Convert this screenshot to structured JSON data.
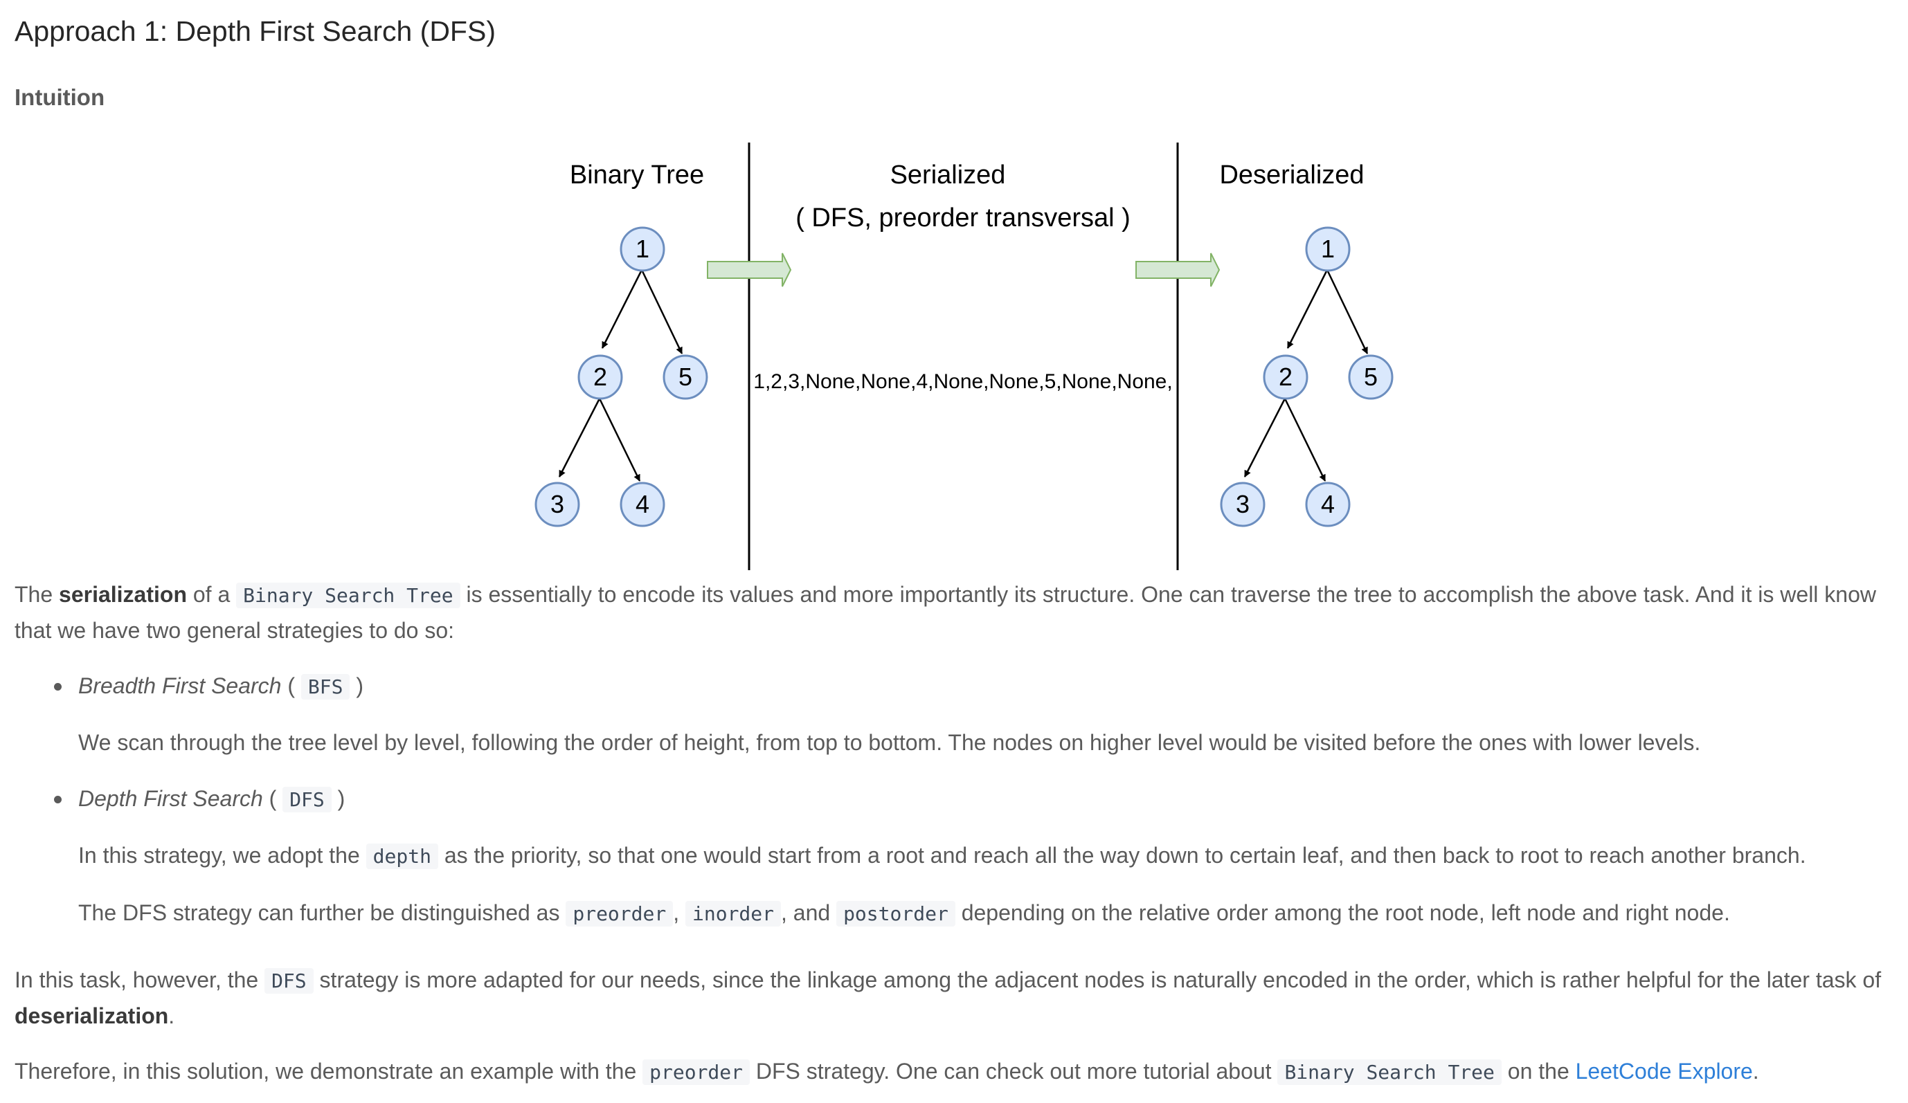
{
  "heading": "Approach 1: Depth First Search (DFS)",
  "subheading": "Intuition",
  "diagram": {
    "label_tree": "Binary Tree",
    "label_serialized": "Serialized",
    "label_serialized_sub": "( DFS, preorder transversal )",
    "label_deserialized": "Deserialized",
    "serialized_string": "1,2,3,None,None,4,None,None,5,None,None,",
    "node_values": [
      "1",
      "2",
      "5",
      "3",
      "4"
    ],
    "colors": {
      "node_fill": "#dae8fc",
      "node_stroke": "#6c8ebf",
      "arrow_fill": "#d5e8d4",
      "arrow_stroke": "#82b366"
    }
  },
  "p1": {
    "t1": "The ",
    "b1": "serialization",
    "t2": " of a ",
    "c1": "Binary Search Tree",
    "t3": " is essentially to encode its values and more importantly its structure. One can traverse the tree to accomplish the above task. And it is well know that we have two general strategies to do so:"
  },
  "bfs": {
    "title": "Breadth First Search",
    "open": " ( ",
    "code": "BFS",
    "close": " )",
    "desc": "We scan through the tree level by level, following the order of height, from top to bottom. The nodes on higher level would be visited before the ones with lower levels."
  },
  "dfs": {
    "title": "Depth First Search",
    "open": " ( ",
    "code": "DFS",
    "close": " )",
    "d1a": "In this strategy, we adopt the ",
    "d1code": "depth",
    "d1b": " as the priority, so that one would start from a root and reach all the way down to certain leaf, and then back to root to reach another branch.",
    "d2a": "The DFS strategy can further be distinguished as ",
    "d2c1": "preorder",
    "d2b": ", ",
    "d2c2": "inorder",
    "d2c": ", and ",
    "d2c3": "postorder",
    "d2d": " depending on the relative order among the root node, left node and right node."
  },
  "p2": {
    "t1": "In this task, however, the ",
    "c1": "DFS",
    "t2": " strategy is more adapted for our needs, since the linkage among the adjacent nodes is naturally encoded in the order, which is rather helpful for the later task of ",
    "b1": "deserialization",
    "t3": "."
  },
  "p3": {
    "t1": "Therefore, in this solution, we demonstrate an example with the ",
    "c1": "preorder",
    "t2": " DFS strategy. One can check out more tutorial about ",
    "c2": "Binary Search Tree",
    "t3": " on the ",
    "link": "LeetCode Explore",
    "t4": "."
  }
}
